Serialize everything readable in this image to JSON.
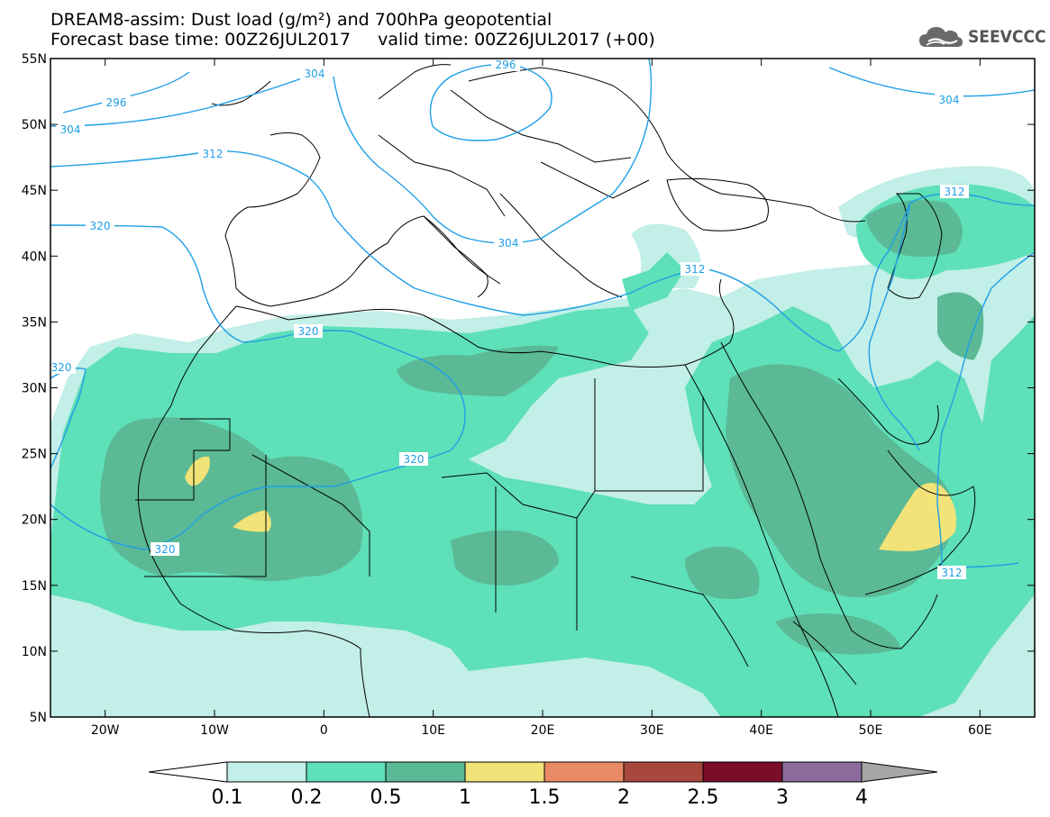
{
  "header": {
    "title_line1": "DREAM8-assim: Dust load (g/m²) and 700hPa geopotential",
    "title_line2": "Forecast base time: 00Z26JUL2017     valid time: 00Z26JUL2017 (+00)"
  },
  "logo": {
    "text": "SEEVCCC",
    "icon": "cloud-icon"
  },
  "map": {
    "lon_range": [
      -25,
      65
    ],
    "lat_range": [
      5,
      55
    ],
    "lat_ticks": [
      "55N",
      "50N",
      "45N",
      "40N",
      "35N",
      "30N",
      "25N",
      "20N",
      "15N",
      "10N",
      "5N"
    ],
    "lon_ticks": [
      "20W",
      "10W",
      "0",
      "10E",
      "20E",
      "30E",
      "40E",
      "50E",
      "60E"
    ],
    "contour_labels": [
      "296",
      "304",
      "296",
      "304",
      "312",
      "320",
      "304",
      "312",
      "312",
      "320",
      "320",
      "320",
      "312",
      "304"
    ]
  },
  "colorbar": {
    "labels": [
      "0.1",
      "0.2",
      "0.5",
      "1",
      "1.5",
      "2",
      "2.5",
      "3",
      "4"
    ],
    "colors": [
      "#ffffff",
      "#c2efe8",
      "#5ee0b8",
      "#5bb996",
      "#f1e377",
      "#e88a63",
      "#a8473d",
      "#7a0d2a",
      "#8a6b9c",
      "#a6a6a6"
    ]
  },
  "colors": {
    "contour": "#1f9fe6",
    "coast": "#000000",
    "dust_low": "#c2efe8",
    "dust_mid": "#5ee0b8",
    "dust_high": "#5bb996",
    "dust_peak": "#f1e377"
  }
}
